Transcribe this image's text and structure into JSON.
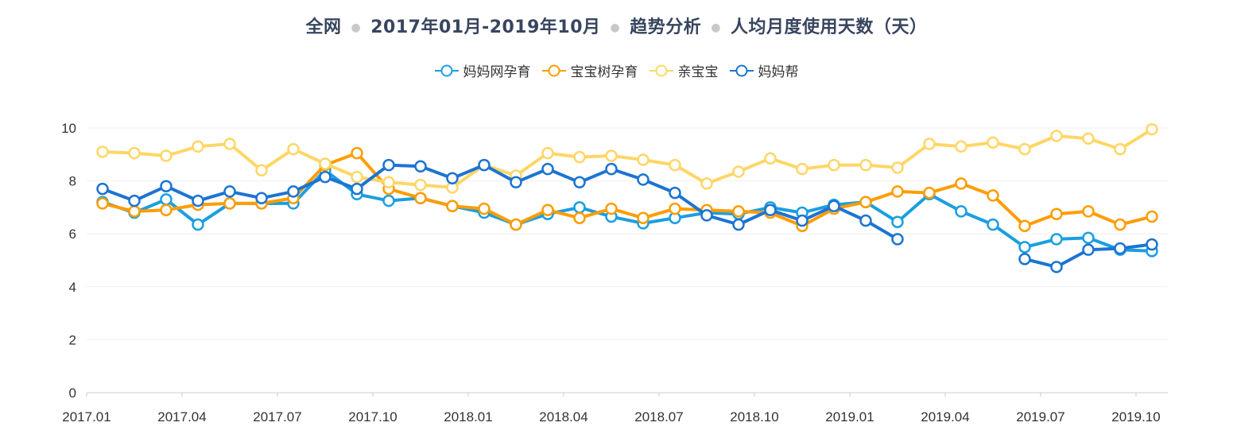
{
  "title": {
    "parts": [
      "全网",
      "2017年01月-2019年10月",
      "趋势分析",
      "人均月度使用天数（天）"
    ]
  },
  "chart_data": {
    "type": "line",
    "title": "全网 · 2017年01月-2019年10月 · 趋势分析 · 人均月度使用天数（天）",
    "xlabel": "",
    "ylabel": "",
    "ylim": [
      0,
      10
    ],
    "yticks": [
      0,
      2,
      4,
      6,
      8,
      10
    ],
    "grid": true,
    "legend": "top-center",
    "categories": [
      "2017.01",
      "2017.02",
      "2017.03",
      "2017.04",
      "2017.05",
      "2017.06",
      "2017.07",
      "2017.08",
      "2017.09",
      "2017.10",
      "2017.11",
      "2017.12",
      "2018.01",
      "2018.02",
      "2018.03",
      "2018.04",
      "2018.05",
      "2018.06",
      "2018.07",
      "2018.08",
      "2018.09",
      "2018.10",
      "2018.11",
      "2018.12",
      "2019.01",
      "2019.02",
      "2019.03",
      "2019.04",
      "2019.05",
      "2019.06",
      "2019.07",
      "2019.08",
      "2019.09",
      "2019.10"
    ],
    "xtick_labels": [
      "2017.01",
      "2017.04",
      "2017.07",
      "2017.10",
      "2018.01",
      "2018.04",
      "2018.07",
      "2018.10",
      "2019.01",
      "2019.04",
      "2019.07",
      "2019.10"
    ],
    "series": [
      {
        "name": "妈妈网孕育",
        "color": "#1a9fe0",
        "values": [
          7.2,
          6.8,
          7.3,
          6.35,
          7.15,
          7.15,
          7.15,
          8.4,
          7.5,
          7.25,
          7.35,
          7.05,
          6.8,
          6.35,
          6.75,
          7.0,
          6.65,
          6.4,
          6.6,
          6.8,
          6.75,
          7.0,
          6.8,
          7.1,
          7.2,
          6.45,
          7.5,
          6.85,
          6.35,
          5.5,
          5.8,
          5.85,
          5.4,
          5.35
        ]
      },
      {
        "name": "宝宝树孕育",
        "color": "#ff9d00",
        "values": [
          7.15,
          6.85,
          6.9,
          7.1,
          7.15,
          7.15,
          7.35,
          8.6,
          9.05,
          7.7,
          7.35,
          7.05,
          6.95,
          6.35,
          6.9,
          6.6,
          6.95,
          6.6,
          6.95,
          6.9,
          6.85,
          6.8,
          6.3,
          6.95,
          7.2,
          7.6,
          7.55,
          7.9,
          7.45,
          6.3,
          6.75,
          6.85,
          6.35,
          6.65
        ]
      },
      {
        "name": "亲宝宝",
        "color": "#ffd666",
        "values": [
          9.1,
          9.05,
          8.95,
          9.3,
          9.4,
          8.4,
          9.2,
          8.65,
          8.15,
          7.95,
          7.85,
          7.75,
          8.6,
          8.2,
          9.05,
          8.9,
          8.95,
          8.8,
          8.6,
          7.9,
          8.35,
          8.85,
          8.45,
          8.6,
          8.6,
          8.5,
          9.4,
          9.3,
          9.45,
          9.2,
          9.7,
          9.6,
          9.2,
          9.95
        ]
      },
      {
        "name": "妈妈帮",
        "color": "#1c74d2",
        "values": [
          7.7,
          7.25,
          7.8,
          7.25,
          7.6,
          7.35,
          7.6,
          8.15,
          7.7,
          8.6,
          8.55,
          8.1,
          8.6,
          7.95,
          8.45,
          7.95,
          8.45,
          8.05,
          7.55,
          6.7,
          6.35,
          6.9,
          6.5,
          7.05,
          6.5,
          5.8,
          null,
          null,
          null,
          5.05,
          4.75,
          5.4,
          5.45,
          5.6
        ]
      }
    ]
  }
}
